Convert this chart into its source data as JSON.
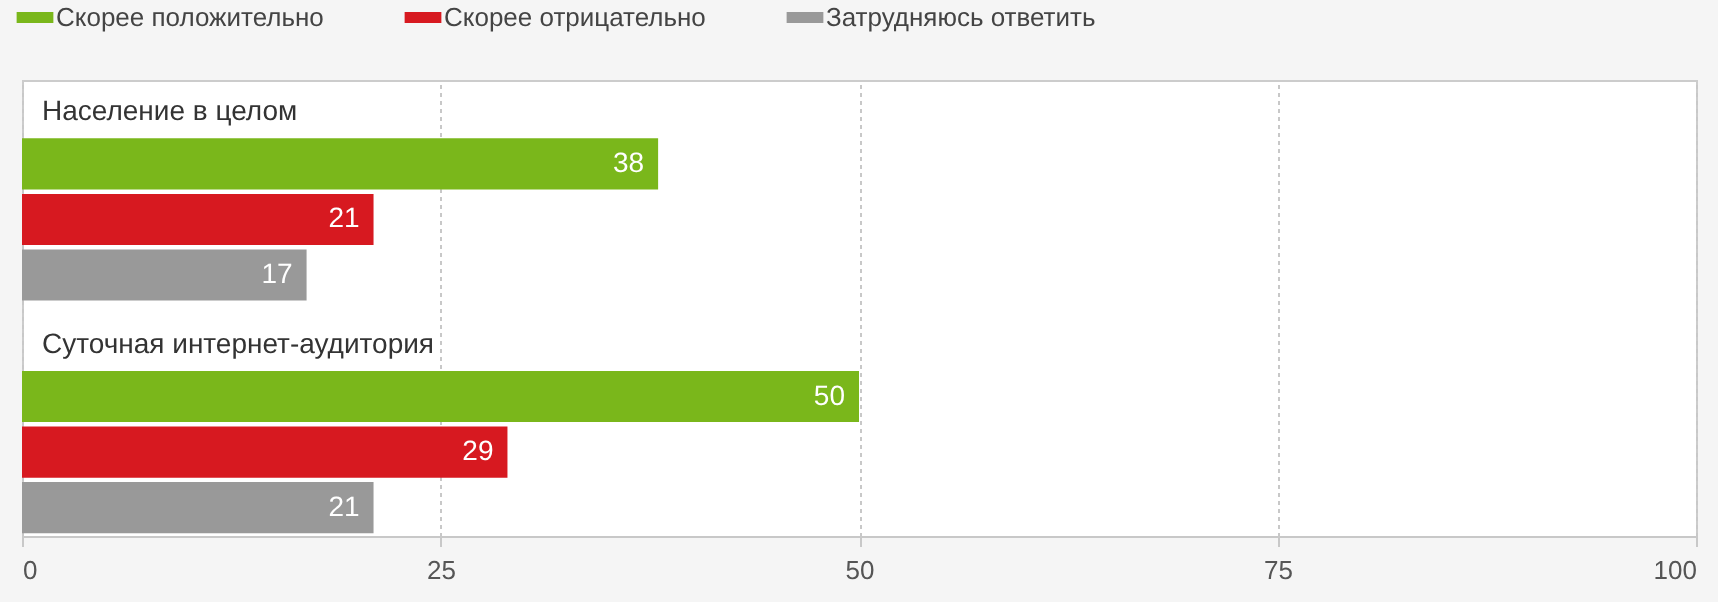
{
  "chart_data": {
    "type": "bar",
    "orientation": "horizontal",
    "categories": [
      "Население в целом",
      "Суточная интернет-аудитория"
    ],
    "series": [
      {
        "name": "Скорее положительно",
        "color": "#7ab71b",
        "values": [
          38,
          50
        ]
      },
      {
        "name": "Скорее отрицательно",
        "color": "#d71920",
        "values": [
          21,
          29
        ]
      },
      {
        "name": "Затрудняюсь ответить",
        "color": "#999999",
        "values": [
          17,
          21
        ]
      }
    ],
    "xlim": [
      0,
      100
    ],
    "xticks": [
      0,
      25,
      50,
      75,
      100
    ],
    "grid": "x",
    "legend": "top left",
    "data_labels": true
  }
}
